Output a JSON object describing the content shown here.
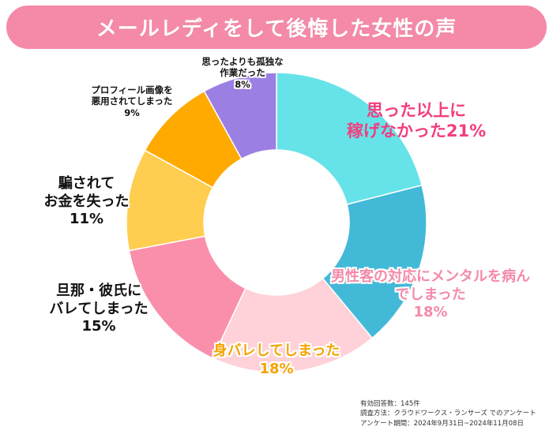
{
  "title": "メールレディをして後悔した女性の声",
  "colors": {
    "banner": "#f48aa8",
    "accent_pink": "#f33d7f",
    "light_pink": "#f48aa8",
    "orange_text": "#f5a300"
  },
  "chart_data": {
    "type": "pie",
    "donut": true,
    "unit": "%",
    "categories": [
      "思った以上に稼げなかった",
      "男性客の対応にメンタルを病んでしまった",
      "身バレしてしまった",
      "旦那・彼氏にバレてしまった",
      "騙されてお金を失った",
      "プロフィール画像を悪用されてしまった",
      "思ったよりも孤独な作業だった"
    ],
    "values": [
      21,
      18,
      18,
      15,
      11,
      9,
      8
    ],
    "colors": [
      "#66e3e9",
      "#43b9d8",
      "#ffd1d8",
      "#fa8fab",
      "#ffcd4f",
      "#ffaa00",
      "#9b7fe3"
    ]
  },
  "labels": {
    "s1": {
      "line1": "思った以上に",
      "line2": "稼げなかった21%"
    },
    "s2": {
      "line1": "男性客の対応にメンタルを病ん",
      "line2": "でしまった",
      "pct": "18%"
    },
    "s3": {
      "line1": "身バレしてしまった",
      "pct": "18%"
    },
    "s4": {
      "line1": "旦那・彼氏に",
      "line2": "バレてしまった",
      "pct": "15%"
    },
    "s5": {
      "line1": "騙されて",
      "line2": "お金を失った",
      "pct": "11%"
    },
    "s6": {
      "line1": "プロフィール画像を",
      "line2": "悪用されてしまった",
      "pct": "9%"
    },
    "s7": {
      "line1": "思ったよりも孤独な",
      "line2": "作業だった",
      "pct": "8%"
    }
  },
  "notes": {
    "count": "有効回答数：145件",
    "method": "調査方法：クラウドワークス・ランサーズ でのアンケート",
    "period": "アンケート期間：2024年9月31日~2024年11月08日"
  }
}
